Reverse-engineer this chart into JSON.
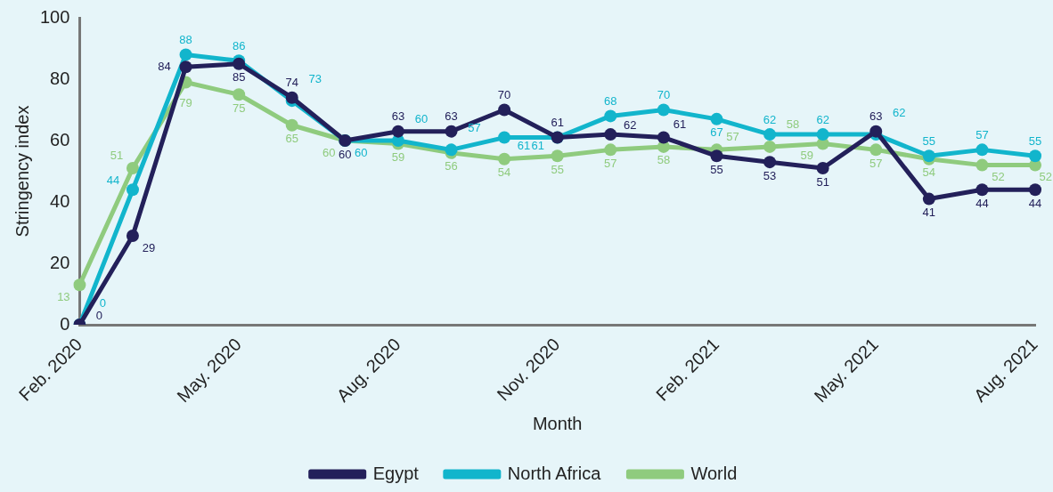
{
  "chart_data": {
    "type": "line",
    "xlabel": "Month",
    "ylabel": "Stringency index",
    "categories": [
      "Feb. 2020",
      null,
      null,
      "May. 2020",
      null,
      null,
      "Aug. 2020",
      null,
      null,
      "Nov. 2020",
      null,
      null,
      "Feb. 2021",
      null,
      null,
      "May. 2021",
      null,
      null,
      "Aug. 2021"
    ],
    "series": [
      {
        "name": "Egypt",
        "color": "#23205a",
        "values": [
          0,
          29,
          84,
          85,
          74,
          60,
          63,
          63,
          70,
          61,
          62,
          61,
          55,
          53,
          51,
          63,
          41,
          44,
          44
        ]
      },
      {
        "name": "North Africa",
        "color": "#12b5cc",
        "values": [
          0,
          44,
          88,
          86,
          73,
          60,
          60,
          57,
          61,
          61,
          68,
          70,
          67,
          62,
          62,
          62,
          55,
          57,
          55
        ]
      },
      {
        "name": "World",
        "color": "#8fcb7e",
        "values": [
          13,
          51,
          79,
          75,
          65,
          60,
          59,
          56,
          54,
          55,
          57,
          58,
          57,
          58,
          59,
          57,
          54,
          52,
          52
        ]
      }
    ],
    "ylim": [
      0,
      100
    ],
    "yticks": [
      0,
      20,
      40,
      60,
      80,
      100
    ],
    "grid": false,
    "legend": "bottom",
    "marker": "circle",
    "line_style": "solid",
    "data_labels": true
  }
}
